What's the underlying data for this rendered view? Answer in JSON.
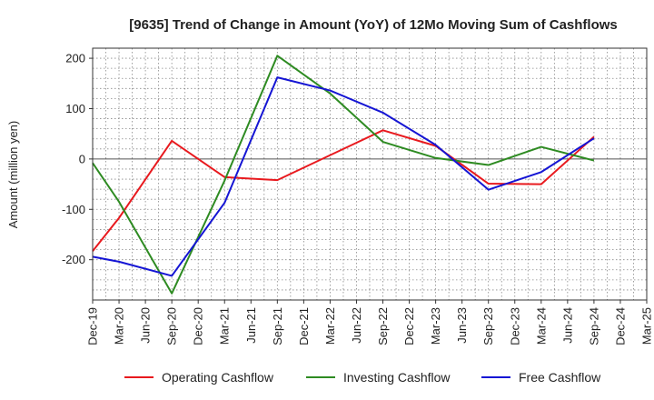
{
  "chart_data": {
    "type": "line",
    "title": "[9635]  Trend of Change in Amount (YoY) of 12Mo Moving Sum of Cashflows",
    "xlabel": "",
    "ylabel": "Amount (million yen)",
    "ylim": [
      -280,
      220
    ],
    "yticks": [
      200,
      100,
      0,
      -100,
      -200
    ],
    "grid": true,
    "legend_position": "bottom",
    "categories": [
      "Dec-19",
      "Mar-20",
      "Jun-20",
      "Sep-20",
      "Dec-20",
      "Mar-21",
      "Jun-21",
      "Sep-21",
      "Dec-21",
      "Mar-22",
      "Jun-22",
      "Sep-22",
      "Dec-22",
      "Mar-23",
      "Jun-23",
      "Sep-23",
      "Dec-23",
      "Mar-24",
      "Jun-24",
      "Sep-24",
      "Dec-24",
      "Mar-25"
    ],
    "series": [
      {
        "name": "Operating Cashflow",
        "color": "#e8191e",
        "values": [
          -183,
          -117,
          null,
          36,
          null,
          -36,
          null,
          -42,
          null,
          null,
          null,
          57,
          null,
          26,
          null,
          -49,
          null,
          -50,
          null,
          44,
          null,
          null
        ]
      },
      {
        "name": "Investing Cashflow",
        "color": "#2e8b22",
        "values": [
          -8,
          -85,
          null,
          -267,
          null,
          -43,
          null,
          205,
          null,
          130,
          null,
          34,
          null,
          2,
          null,
          -12,
          null,
          24,
          null,
          -3,
          null,
          null
        ]
      },
      {
        "name": "Free Cashflow",
        "color": "#1515d4",
        "values": [
          -194,
          -204,
          null,
          -232,
          null,
          -87,
          null,
          162,
          null,
          136,
          null,
          92,
          null,
          28,
          null,
          -61,
          null,
          -26,
          null,
          41,
          null,
          null
        ]
      }
    ]
  }
}
